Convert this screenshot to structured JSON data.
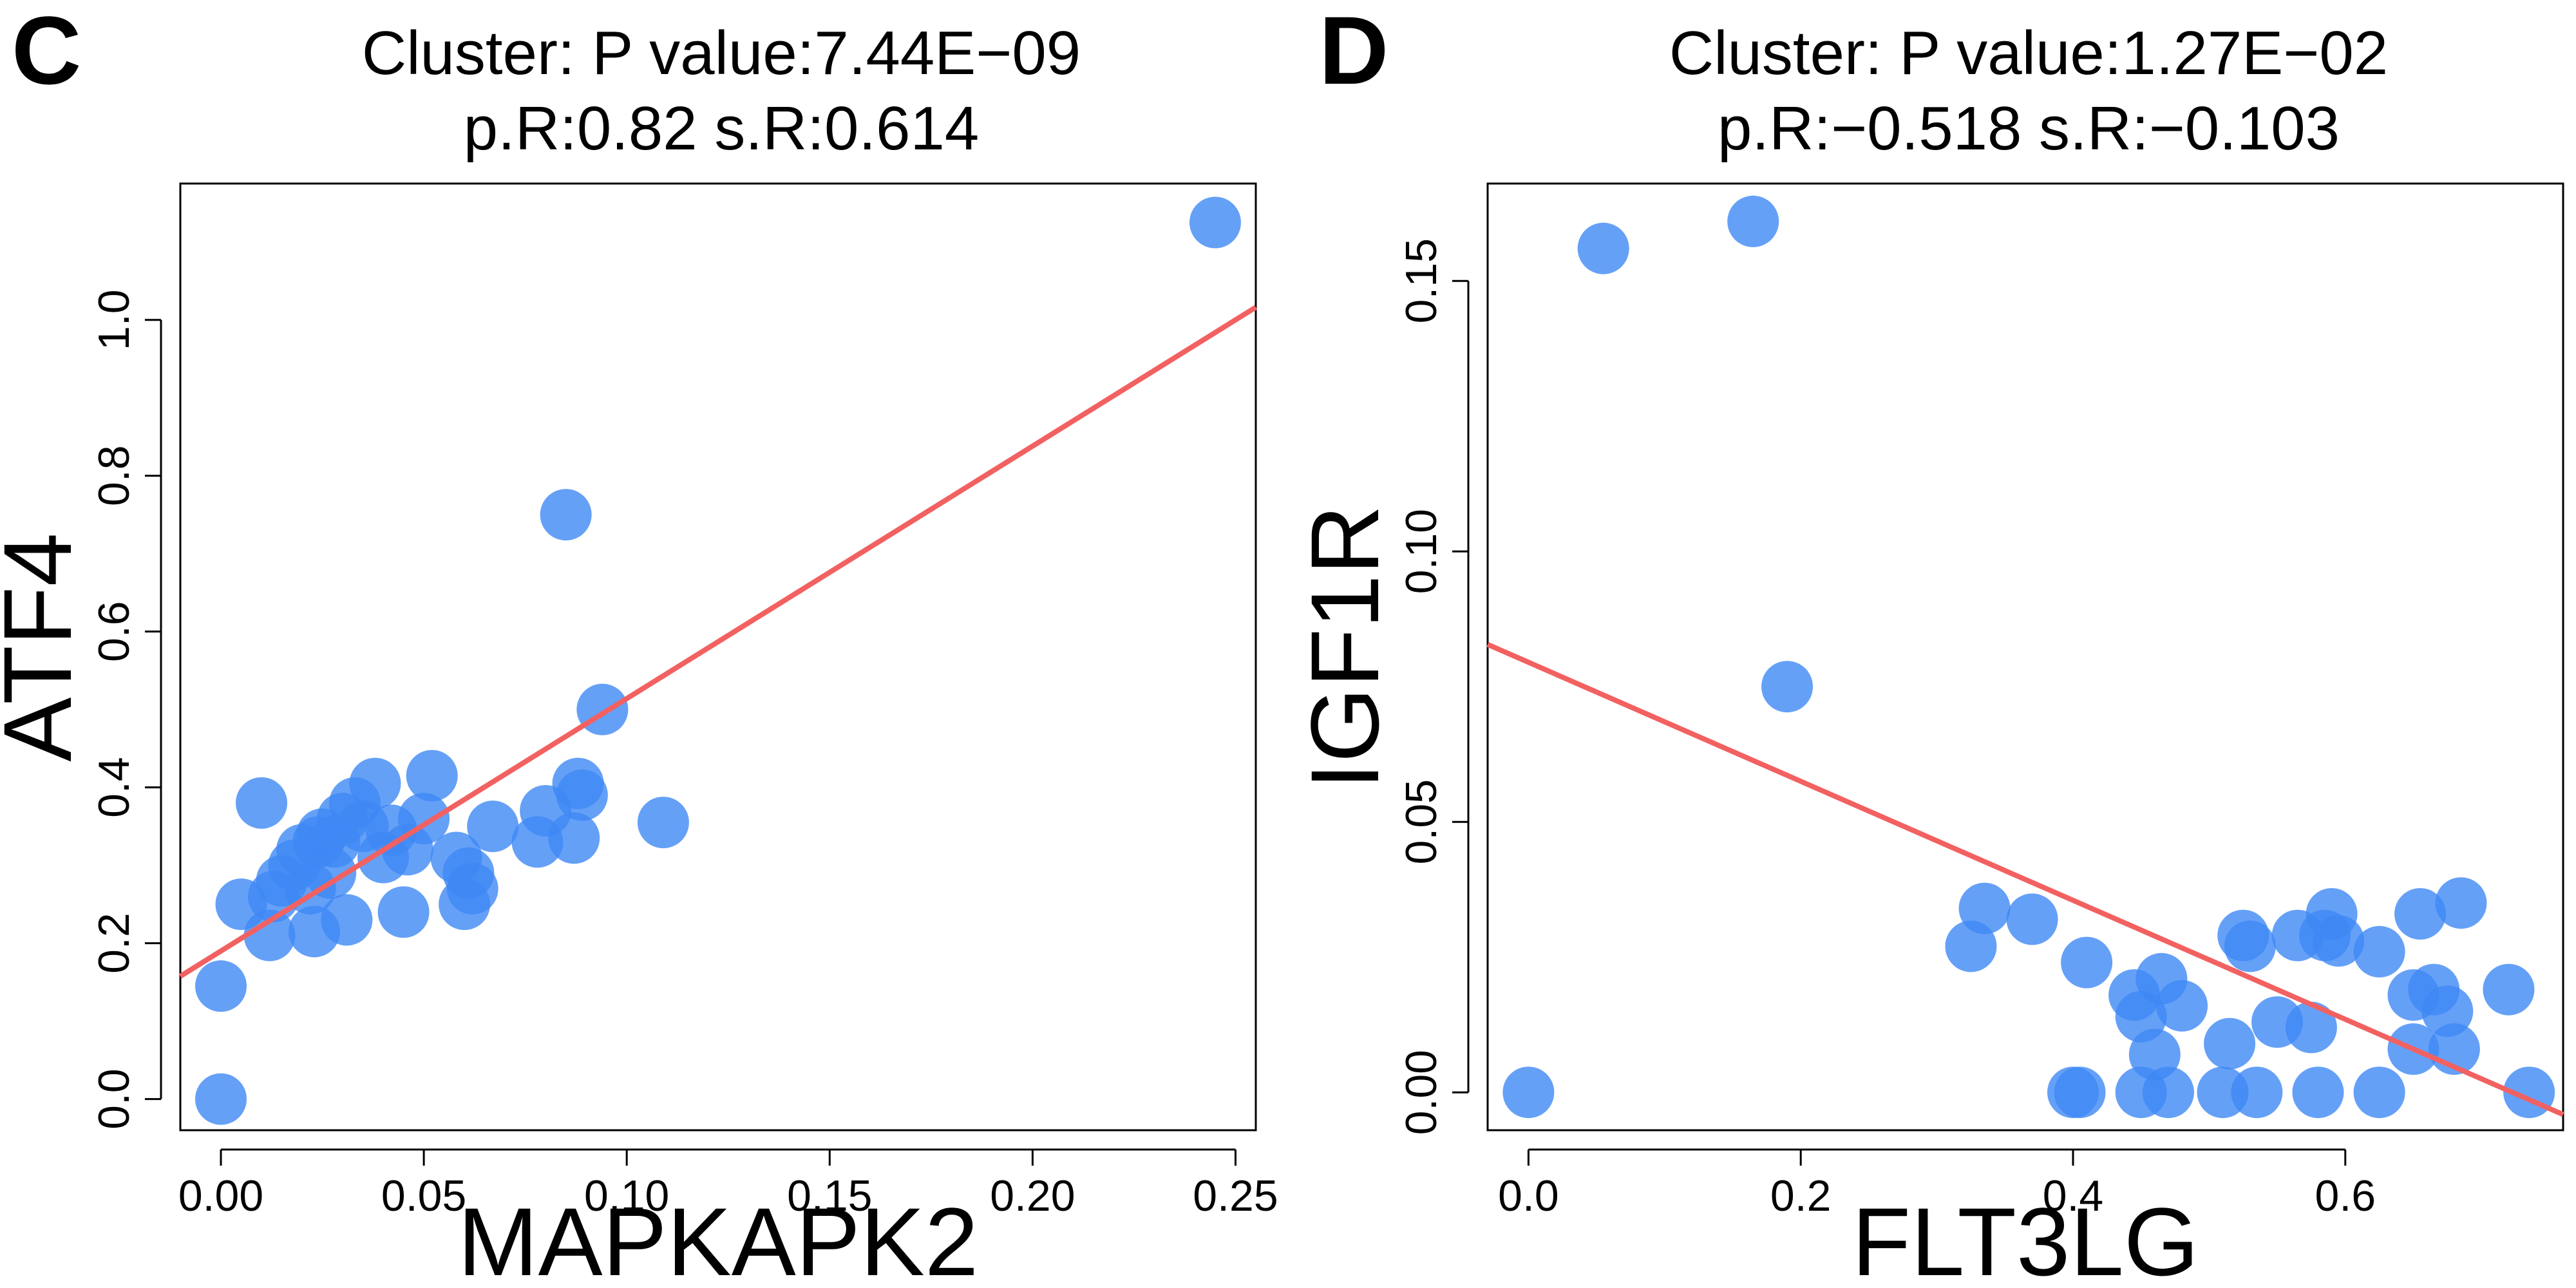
{
  "chart_data": [
    {
      "type": "scatter",
      "panel_label": "C",
      "title_line1": "Cluster: P value:7.44E−09",
      "title_line2": "p.R:0.82 s.R:0.614",
      "xlabel": "MAPKAPK2",
      "ylabel": "ATF4",
      "xlim": [
        -0.01,
        0.255
      ],
      "ylim": [
        -0.04,
        1.175
      ],
      "xticks": [
        0,
        0.05,
        0.1,
        0.15,
        0.2,
        0.25
      ],
      "xtick_labels": [
        "0.00",
        "0.05",
        "0.10",
        "0.15",
        "0.20",
        "0.25"
      ],
      "yticks": [
        0,
        0.2,
        0.4,
        0.6,
        0.8,
        1.0
      ],
      "ytick_labels": [
        "0.0",
        "0.2",
        "0.4",
        "0.6",
        "0.8",
        "1.0"
      ],
      "fit_line": {
        "intercept": 0.19,
        "slope": 3.24,
        "color": "#f26161"
      },
      "point_color": "#3f88f5",
      "points": [
        [
          0.0,
          0.0
        ],
        [
          0.0,
          0.145
        ],
        [
          0.005,
          0.25
        ],
        [
          0.01,
          0.38
        ],
        [
          0.012,
          0.21
        ],
        [
          0.013,
          0.26
        ],
        [
          0.015,
          0.28
        ],
        [
          0.018,
          0.3
        ],
        [
          0.02,
          0.32
        ],
        [
          0.022,
          0.27
        ],
        [
          0.023,
          0.215
        ],
        [
          0.024,
          0.33
        ],
        [
          0.025,
          0.34
        ],
        [
          0.027,
          0.29
        ],
        [
          0.028,
          0.33
        ],
        [
          0.03,
          0.36
        ],
        [
          0.031,
          0.23
        ],
        [
          0.033,
          0.38
        ],
        [
          0.035,
          0.35
        ],
        [
          0.038,
          0.405
        ],
        [
          0.04,
          0.31
        ],
        [
          0.042,
          0.345
        ],
        [
          0.045,
          0.24
        ],
        [
          0.046,
          0.32
        ],
        [
          0.05,
          0.36
        ],
        [
          0.052,
          0.415
        ],
        [
          0.058,
          0.31
        ],
        [
          0.06,
          0.25
        ],
        [
          0.061,
          0.29
        ],
        [
          0.062,
          0.27
        ],
        [
          0.067,
          0.35
        ],
        [
          0.078,
          0.33
        ],
        [
          0.08,
          0.37
        ],
        [
          0.085,
          0.75
        ],
        [
          0.087,
          0.335
        ],
        [
          0.088,
          0.405
        ],
        [
          0.089,
          0.39
        ],
        [
          0.094,
          0.5
        ],
        [
          0.109,
          0.355
        ],
        [
          0.245,
          1.125
        ]
      ]
    },
    {
      "type": "scatter",
      "panel_label": "D",
      "title_line1": "Cluster: P value:1.27E−02",
      "title_line2": "p.R:−0.518 s.R:−0.103",
      "xlabel": "FLT3LG",
      "ylabel": "IGF1R",
      "xlim": [
        -0.03,
        0.76
      ],
      "ylim": [
        -0.007,
        0.168
      ],
      "xticks": [
        0,
        0.2,
        0.4,
        0.6
      ],
      "xtick_labels": [
        "0.0",
        "0.2",
        "0.4",
        "0.6"
      ],
      "yticks": [
        0,
        0.05,
        0.1,
        0.15
      ],
      "ytick_labels": [
        "0.00",
        "0.05",
        "0.10",
        "0.15"
      ],
      "fit_line": {
        "intercept": 0.0795,
        "slope": -0.11,
        "color": "#f26161"
      },
      "point_color": "#3f88f5",
      "points": [
        [
          0.0,
          0.0
        ],
        [
          0.055,
          0.156
        ],
        [
          0.165,
          0.161
        ],
        [
          0.19,
          0.075
        ],
        [
          0.325,
          0.027
        ],
        [
          0.335,
          0.034
        ],
        [
          0.37,
          0.032
        ],
        [
          0.4,
          0.0
        ],
        [
          0.405,
          0.0
        ],
        [
          0.41,
          0.024
        ],
        [
          0.445,
          0.018
        ],
        [
          0.45,
          0.014
        ],
        [
          0.45,
          0.0
        ],
        [
          0.46,
          0.007
        ],
        [
          0.465,
          0.021
        ],
        [
          0.47,
          0.0
        ],
        [
          0.48,
          0.016
        ],
        [
          0.51,
          0.0
        ],
        [
          0.515,
          0.009
        ],
        [
          0.525,
          0.029
        ],
        [
          0.53,
          0.027
        ],
        [
          0.535,
          0.0
        ],
        [
          0.55,
          0.013
        ],
        [
          0.565,
          0.029
        ],
        [
          0.575,
          0.012
        ],
        [
          0.58,
          0.0
        ],
        [
          0.585,
          0.029
        ],
        [
          0.59,
          0.033
        ],
        [
          0.595,
          0.028
        ],
        [
          0.625,
          0.0
        ],
        [
          0.625,
          0.026
        ],
        [
          0.65,
          0.008
        ],
        [
          0.65,
          0.018
        ],
        [
          0.655,
          0.033
        ],
        [
          0.665,
          0.019
        ],
        [
          0.675,
          0.015
        ],
        [
          0.68,
          0.008
        ],
        [
          0.685,
          0.035
        ],
        [
          0.72,
          0.019
        ],
        [
          0.735,
          0.0
        ]
      ]
    }
  ]
}
